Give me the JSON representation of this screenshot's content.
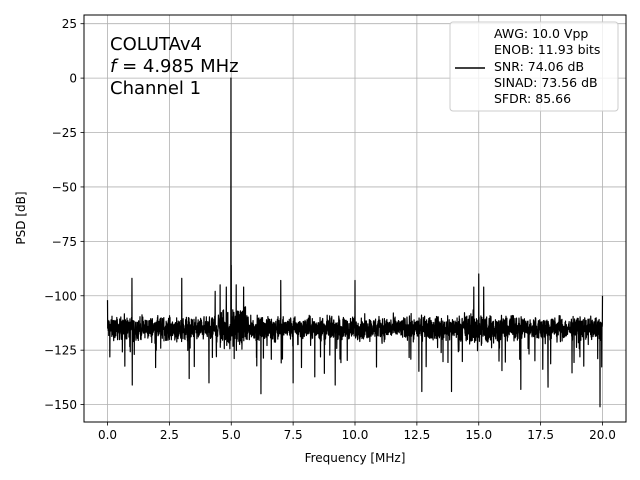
{
  "chart_data": {
    "type": "line",
    "title": "",
    "xlabel": "Frequency [MHz]",
    "ylabel": "PSD [dB]",
    "xlim": [
      -0.95,
      20.95
    ],
    "ylim": [
      -158,
      29
    ],
    "xticks": [
      0.0,
      2.5,
      5.0,
      7.5,
      10.0,
      12.5,
      15.0,
      17.5,
      20.0
    ],
    "xtick_labels": [
      "0.0",
      "2.5",
      "5.0",
      "7.5",
      "10.0",
      "12.5",
      "15.0",
      "17.5",
      "20.0"
    ],
    "yticks": [
      25,
      0,
      -25,
      -50,
      -75,
      -100,
      -125,
      -150
    ],
    "ytick_labels": [
      "25",
      "0",
      "−25",
      "−50",
      "−75",
      "−100",
      "−125",
      "−150"
    ],
    "grid": true,
    "annotation": {
      "line1": "COLUTAv4",
      "line2_var": "f",
      "line2_rest": " = 4.985 MHz",
      "line3": "Channel 1"
    },
    "legend": {
      "placement": "top-right",
      "entries": [
        "AWG: 10.0 Vpp",
        "ENOB: 11.93 bits",
        "SNR: 74.06 dB",
        "SINAD: 73.56 dB",
        "SFDR: 85.66"
      ]
    },
    "series": [
      {
        "color": "#000000",
        "noise_floor_db": -115,
        "fundamental": {
          "x": 4.985,
          "y": 0
        },
        "spurs": [
          {
            "x": 0.0,
            "y": -102
          },
          {
            "x": 0.99,
            "y": -92
          },
          {
            "x": 3.0,
            "y": -92
          },
          {
            "x": 4.35,
            "y": -98
          },
          {
            "x": 4.55,
            "y": -95
          },
          {
            "x": 4.8,
            "y": -96
          },
          {
            "x": 5.0,
            "y": -86
          },
          {
            "x": 5.2,
            "y": -95
          },
          {
            "x": 5.5,
            "y": -96
          },
          {
            "x": 7.0,
            "y": -93
          },
          {
            "x": 10.0,
            "y": -93
          },
          {
            "x": 14.8,
            "y": -96
          },
          {
            "x": 15.0,
            "y": -90
          },
          {
            "x": 15.2,
            "y": -96
          },
          {
            "x": 20.0,
            "y": -100
          }
        ],
        "dips": [
          {
            "x": 1.0,
            "y": -141
          },
          {
            "x": 3.3,
            "y": -138
          },
          {
            "x": 4.1,
            "y": -140
          },
          {
            "x": 6.2,
            "y": -145
          },
          {
            "x": 7.5,
            "y": -140
          },
          {
            "x": 9.2,
            "y": -141
          },
          {
            "x": 12.7,
            "y": -144
          },
          {
            "x": 13.9,
            "y": -144
          },
          {
            "x": 16.7,
            "y": -143
          },
          {
            "x": 17.8,
            "y": -142
          },
          {
            "x": 19.9,
            "y": -151
          }
        ]
      }
    ]
  }
}
